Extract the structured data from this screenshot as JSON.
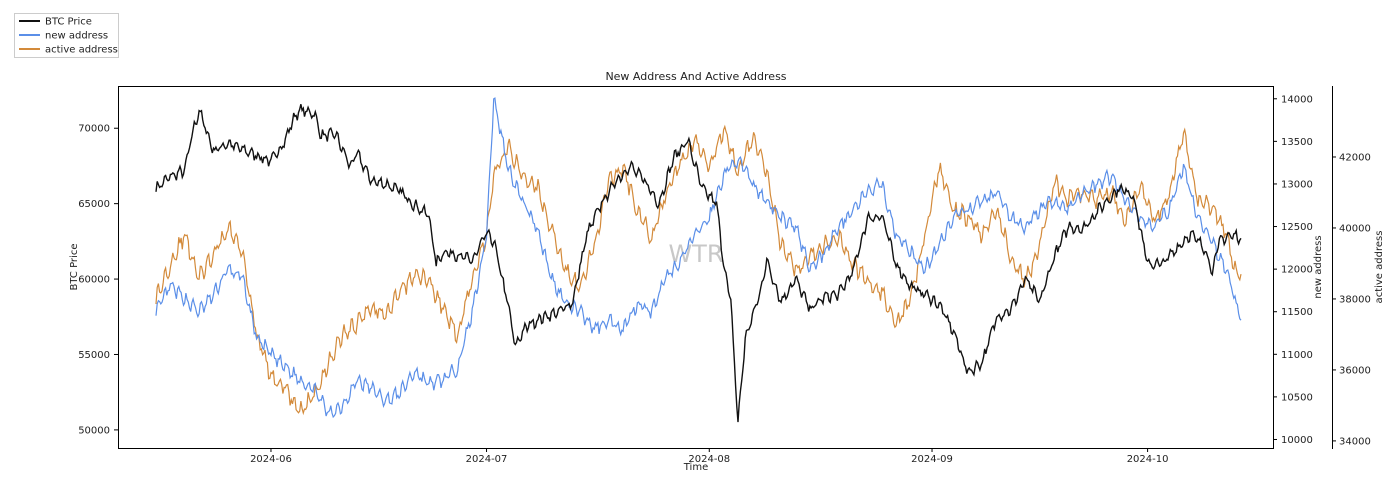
{
  "chart_data": {
    "type": "line",
    "title": "New Address And Active Address",
    "xlabel": "Time",
    "watermark": "WTR",
    "x_ticks": [
      "2024-06",
      "2024-07",
      "2024-08",
      "2024-09",
      "2024-10"
    ],
    "x_range": [
      "2024-05-16",
      "2024-10-14"
    ],
    "grid": false,
    "legend_position": "top-left (outside plot)",
    "axes": [
      {
        "id": "left",
        "label": "BTC Price",
        "ylim": [
          48800,
          72800
        ],
        "ticks": [
          50000,
          55000,
          60000,
          65000,
          70000
        ]
      },
      {
        "id": "right1",
        "label": "new address",
        "ylim": [
          9900,
          14150
        ],
        "ticks": [
          10000,
          10500,
          11000,
          11500,
          12000,
          12500,
          13000,
          13500,
          14000
        ]
      },
      {
        "id": "right2",
        "label": "active address",
        "ylim": [
          33800,
          44000
        ],
        "ticks": [
          34000,
          36000,
          38000,
          40000,
          42000
        ]
      }
    ],
    "series": [
      {
        "name": "BTC Price",
        "axis": "left",
        "color": "#111111",
        "points": [
          [
            "2024-05-16",
            66000
          ],
          [
            "2024-05-18",
            66800
          ],
          [
            "2024-05-20",
            67200
          ],
          [
            "2024-05-21",
            69500
          ],
          [
            "2024-05-22",
            71200
          ],
          [
            "2024-05-24",
            68500
          ],
          [
            "2024-05-26",
            69000
          ],
          [
            "2024-05-28",
            68600
          ],
          [
            "2024-05-30",
            68200
          ],
          [
            "2024-06-01",
            67800
          ],
          [
            "2024-06-03",
            69200
          ],
          [
            "2024-06-04",
            70500
          ],
          [
            "2024-06-05",
            71200
          ],
          [
            "2024-06-07",
            71000
          ],
          [
            "2024-06-08",
            69500
          ],
          [
            "2024-06-10",
            69600
          ],
          [
            "2024-06-12",
            67500
          ],
          [
            "2024-06-13",
            68300
          ],
          [
            "2024-06-15",
            66500
          ],
          [
            "2024-06-17",
            66300
          ],
          [
            "2024-06-19",
            65800
          ],
          [
            "2024-06-21",
            64900
          ],
          [
            "2024-06-23",
            64200
          ],
          [
            "2024-06-24",
            61000
          ],
          [
            "2024-06-25",
            61800
          ],
          [
            "2024-06-27",
            61600
          ],
          [
            "2024-06-29",
            61200
          ],
          [
            "2024-07-01",
            63000
          ],
          [
            "2024-07-02",
            62500
          ],
          [
            "2024-07-04",
            58300
          ],
          [
            "2024-07-05",
            55500
          ],
          [
            "2024-07-06",
            56500
          ],
          [
            "2024-07-07",
            57000
          ],
          [
            "2024-07-09",
            57500
          ],
          [
            "2024-07-11",
            57800
          ],
          [
            "2024-07-13",
            58500
          ],
          [
            "2024-07-15",
            63000
          ],
          [
            "2024-07-17",
            65000
          ],
          [
            "2024-07-19",
            66500
          ],
          [
            "2024-07-21",
            67500
          ],
          [
            "2024-07-23",
            66500
          ],
          [
            "2024-07-25",
            65000
          ],
          [
            "2024-07-27",
            68000
          ],
          [
            "2024-07-29",
            69200
          ],
          [
            "2024-07-31",
            66000
          ],
          [
            "2024-08-02",
            65000
          ],
          [
            "2024-08-03",
            61000
          ],
          [
            "2024-08-04",
            58500
          ],
          [
            "2024-08-05",
            50500
          ],
          [
            "2024-08-06",
            56000
          ],
          [
            "2024-08-08",
            59000
          ],
          [
            "2024-08-09",
            61200
          ],
          [
            "2024-08-11",
            58500
          ],
          [
            "2024-08-13",
            60000
          ],
          [
            "2024-08-15",
            58000
          ],
          [
            "2024-08-17",
            58800
          ],
          [
            "2024-08-19",
            59000
          ],
          [
            "2024-08-21",
            60500
          ],
          [
            "2024-08-23",
            64000
          ],
          [
            "2024-08-25",
            64200
          ],
          [
            "2024-08-27",
            61000
          ],
          [
            "2024-08-29",
            59500
          ],
          [
            "2024-08-31",
            59000
          ],
          [
            "2024-09-02",
            58300
          ],
          [
            "2024-09-04",
            56500
          ],
          [
            "2024-09-06",
            53800
          ],
          [
            "2024-09-08",
            54500
          ],
          [
            "2024-09-10",
            57500
          ],
          [
            "2024-09-12",
            58000
          ],
          [
            "2024-09-14",
            60000
          ],
          [
            "2024-09-16",
            58500
          ],
          [
            "2024-09-18",
            61500
          ],
          [
            "2024-09-20",
            63500
          ],
          [
            "2024-09-22",
            63300
          ],
          [
            "2024-09-24",
            64500
          ],
          [
            "2024-09-26",
            65500
          ],
          [
            "2024-09-27",
            66000
          ],
          [
            "2024-09-29",
            65600
          ],
          [
            "2024-10-01",
            61000
          ],
          [
            "2024-10-03",
            61000
          ],
          [
            "2024-10-05",
            62000
          ],
          [
            "2024-10-07",
            63000
          ],
          [
            "2024-10-09",
            62000
          ],
          [
            "2024-10-10",
            60500
          ],
          [
            "2024-10-11",
            62500
          ],
          [
            "2024-10-12",
            62800
          ],
          [
            "2024-10-13",
            62900
          ],
          [
            "2024-10-14",
            62700
          ]
        ]
      },
      {
        "name": "new address",
        "axis": "right1",
        "color": "#5b8fe8",
        "points": [
          [
            "2024-05-16",
            11500
          ],
          [
            "2024-05-18",
            11800
          ],
          [
            "2024-05-20",
            11650
          ],
          [
            "2024-05-22",
            11500
          ],
          [
            "2024-05-24",
            11700
          ],
          [
            "2024-05-26",
            12000
          ],
          [
            "2024-05-28",
            11900
          ],
          [
            "2024-05-30",
            11200
          ],
          [
            "2024-06-01",
            11000
          ],
          [
            "2024-06-03",
            10850
          ],
          [
            "2024-06-05",
            10700
          ],
          [
            "2024-06-07",
            10600
          ],
          [
            "2024-06-09",
            10300
          ],
          [
            "2024-06-11",
            10400
          ],
          [
            "2024-06-13",
            10700
          ],
          [
            "2024-06-15",
            10600
          ],
          [
            "2024-06-17",
            10450
          ],
          [
            "2024-06-19",
            10550
          ],
          [
            "2024-06-21",
            10800
          ],
          [
            "2024-06-23",
            10650
          ],
          [
            "2024-06-25",
            10700
          ],
          [
            "2024-06-27",
            10850
          ],
          [
            "2024-06-29",
            11500
          ],
          [
            "2024-07-01",
            12400
          ],
          [
            "2024-07-02",
            14000
          ],
          [
            "2024-07-04",
            13200
          ],
          [
            "2024-07-06",
            12800
          ],
          [
            "2024-07-08",
            12500
          ],
          [
            "2024-07-10",
            11900
          ],
          [
            "2024-07-12",
            11600
          ],
          [
            "2024-07-14",
            11500
          ],
          [
            "2024-07-16",
            11300
          ],
          [
            "2024-07-18",
            11400
          ],
          [
            "2024-07-20",
            11300
          ],
          [
            "2024-07-22",
            11600
          ],
          [
            "2024-07-24",
            11500
          ],
          [
            "2024-07-26",
            11900
          ],
          [
            "2024-07-28",
            12100
          ],
          [
            "2024-07-30",
            12400
          ],
          [
            "2024-08-01",
            12600
          ],
          [
            "2024-08-03",
            13100
          ],
          [
            "2024-08-05",
            13300
          ],
          [
            "2024-08-07",
            13000
          ],
          [
            "2024-08-09",
            12800
          ],
          [
            "2024-08-11",
            12600
          ],
          [
            "2024-08-13",
            12500
          ],
          [
            "2024-08-15",
            12000
          ],
          [
            "2024-08-17",
            12200
          ],
          [
            "2024-08-19",
            12500
          ],
          [
            "2024-08-21",
            12700
          ],
          [
            "2024-08-23",
            12900
          ],
          [
            "2024-08-25",
            13000
          ],
          [
            "2024-08-27",
            12400
          ],
          [
            "2024-08-29",
            12200
          ],
          [
            "2024-08-31",
            12000
          ],
          [
            "2024-09-02",
            12300
          ],
          [
            "2024-09-04",
            12600
          ],
          [
            "2024-09-06",
            12700
          ],
          [
            "2024-09-08",
            12800
          ],
          [
            "2024-09-10",
            12900
          ],
          [
            "2024-09-12",
            12600
          ],
          [
            "2024-09-14",
            12500
          ],
          [
            "2024-09-16",
            12700
          ],
          [
            "2024-09-18",
            12800
          ],
          [
            "2024-09-20",
            12700
          ],
          [
            "2024-09-22",
            12900
          ],
          [
            "2024-09-24",
            13000
          ],
          [
            "2024-09-26",
            13100
          ],
          [
            "2024-09-28",
            12800
          ],
          [
            "2024-09-30",
            12600
          ],
          [
            "2024-10-02",
            12500
          ],
          [
            "2024-10-04",
            12700
          ],
          [
            "2024-10-06",
            13200
          ],
          [
            "2024-10-08",
            12600
          ],
          [
            "2024-10-10",
            12300
          ],
          [
            "2024-10-12",
            12000
          ],
          [
            "2024-10-13",
            11700
          ],
          [
            "2024-10-14",
            11400
          ]
        ]
      },
      {
        "name": "active address",
        "axis": "right2",
        "color": "#d38a3a",
        "points": [
          [
            "2024-05-16",
            38000
          ],
          [
            "2024-05-18",
            39000
          ],
          [
            "2024-05-20",
            39800
          ],
          [
            "2024-05-22",
            38600
          ],
          [
            "2024-05-24",
            39200
          ],
          [
            "2024-05-26",
            40000
          ],
          [
            "2024-05-28",
            39400
          ],
          [
            "2024-05-30",
            37000
          ],
          [
            "2024-06-01",
            35800
          ],
          [
            "2024-06-03",
            35500
          ],
          [
            "2024-06-05",
            34800
          ],
          [
            "2024-06-07",
            35300
          ],
          [
            "2024-06-09",
            36200
          ],
          [
            "2024-06-11",
            37000
          ],
          [
            "2024-06-13",
            37300
          ],
          [
            "2024-06-15",
            37800
          ],
          [
            "2024-06-17",
            37500
          ],
          [
            "2024-06-19",
            38200
          ],
          [
            "2024-06-21",
            38700
          ],
          [
            "2024-06-23",
            38500
          ],
          [
            "2024-06-25",
            37700
          ],
          [
            "2024-06-27",
            37000
          ],
          [
            "2024-06-29",
            38600
          ],
          [
            "2024-07-01",
            39800
          ],
          [
            "2024-07-02",
            41500
          ],
          [
            "2024-07-04",
            42300
          ],
          [
            "2024-07-06",
            41500
          ],
          [
            "2024-07-08",
            41200
          ],
          [
            "2024-07-10",
            40000
          ],
          [
            "2024-07-12",
            38800
          ],
          [
            "2024-07-14",
            38300
          ],
          [
            "2024-07-16",
            39500
          ],
          [
            "2024-07-18",
            41300
          ],
          [
            "2024-07-20",
            41700
          ],
          [
            "2024-07-22",
            40500
          ],
          [
            "2024-07-24",
            39700
          ],
          [
            "2024-07-26",
            41000
          ],
          [
            "2024-07-28",
            41800
          ],
          [
            "2024-07-30",
            42500
          ],
          [
            "2024-08-01",
            41800
          ],
          [
            "2024-08-03",
            42800
          ],
          [
            "2024-08-05",
            41600
          ],
          [
            "2024-08-07",
            42500
          ],
          [
            "2024-08-09",
            41600
          ],
          [
            "2024-08-11",
            39500
          ],
          [
            "2024-08-13",
            38800
          ],
          [
            "2024-08-15",
            39200
          ],
          [
            "2024-08-17",
            39500
          ],
          [
            "2024-08-19",
            39800
          ],
          [
            "2024-08-21",
            39000
          ],
          [
            "2024-08-23",
            38500
          ],
          [
            "2024-08-25",
            38200
          ],
          [
            "2024-08-27",
            37200
          ],
          [
            "2024-08-29",
            38000
          ],
          [
            "2024-08-31",
            39800
          ],
          [
            "2024-09-02",
            41700
          ],
          [
            "2024-09-04",
            40500
          ],
          [
            "2024-09-06",
            40300
          ],
          [
            "2024-09-08",
            39800
          ],
          [
            "2024-09-10",
            40500
          ],
          [
            "2024-09-12",
            39200
          ],
          [
            "2024-09-14",
            38500
          ],
          [
            "2024-09-16",
            39500
          ],
          [
            "2024-09-18",
            41300
          ],
          [
            "2024-09-20",
            40800
          ],
          [
            "2024-09-22",
            41000
          ],
          [
            "2024-09-24",
            40800
          ],
          [
            "2024-09-26",
            41000
          ],
          [
            "2024-09-28",
            40200
          ],
          [
            "2024-09-30",
            41200
          ],
          [
            "2024-10-02",
            40200
          ],
          [
            "2024-10-04",
            40900
          ],
          [
            "2024-10-06",
            42800
          ],
          [
            "2024-10-08",
            40700
          ],
          [
            "2024-10-10",
            40600
          ],
          [
            "2024-10-12",
            39800
          ],
          [
            "2024-10-13",
            38900
          ],
          [
            "2024-10-14",
            38700
          ]
        ]
      }
    ]
  }
}
